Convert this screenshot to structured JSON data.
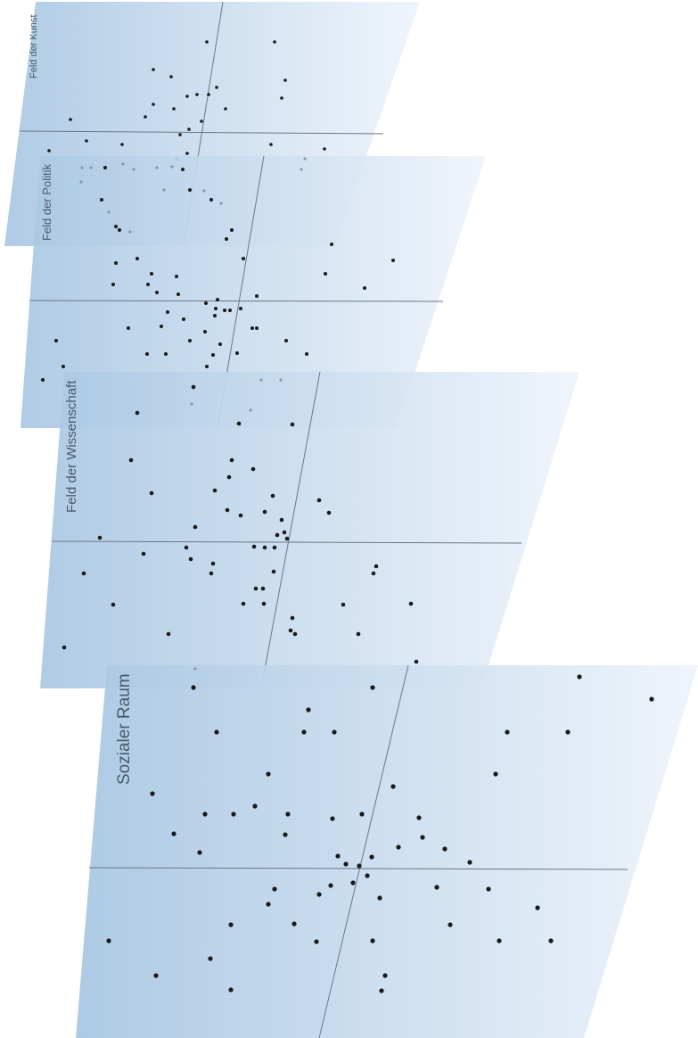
{
  "planes": [
    {
      "id": "kunst",
      "label": "Feld der Kunst"
    },
    {
      "id": "politik",
      "label": "Feld der Politik"
    },
    {
      "id": "wissenschaft",
      "label": "Feld der Wissenschaft"
    },
    {
      "id": "sozial",
      "label": "Sozialer Raum"
    }
  ],
  "colors": {
    "plane_left": "#a9c7e3",
    "plane_right": "#edf3fa",
    "dot": "#1a1a1a",
    "axis": "#6b7784"
  }
}
